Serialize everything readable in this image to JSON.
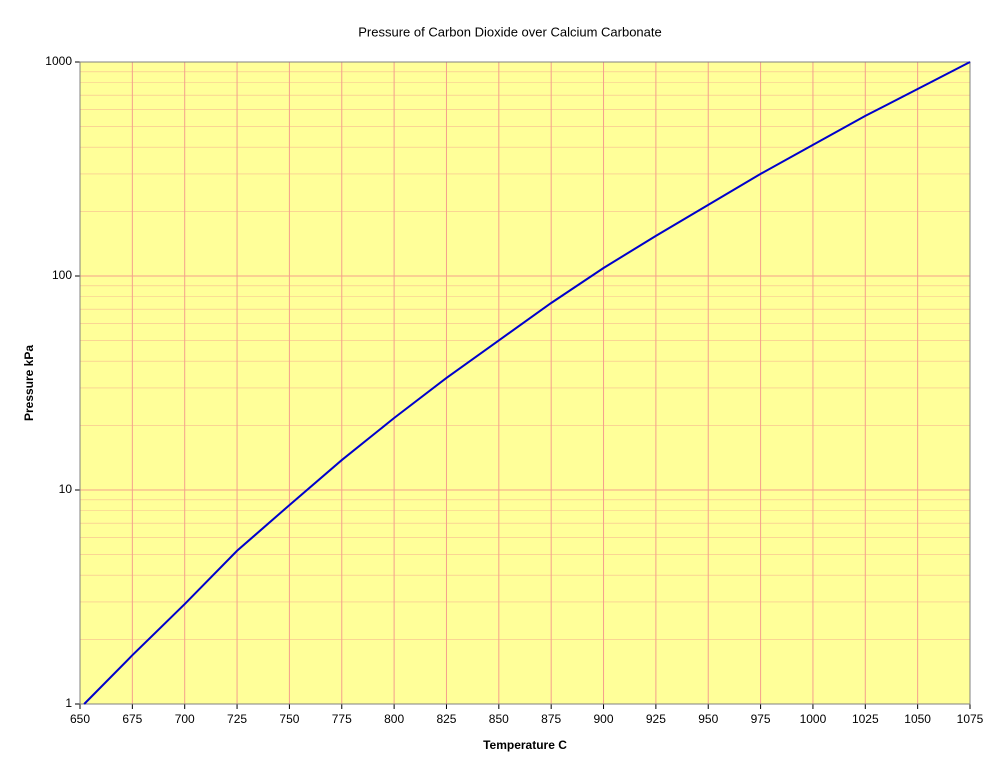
{
  "chart_data": {
    "type": "line",
    "title": "Pressure of Carbon Dioxide over Calcium Carbonate",
    "x_label": "Temperature C",
    "y_label": "Pressure kPa",
    "x": [
      652,
      675,
      700,
      725,
      750,
      775,
      800,
      825,
      850,
      875,
      900,
      925,
      950,
      975,
      1000,
      1025,
      1050,
      1075
    ],
    "series": [
      {
        "name": "Pressure",
        "color": "#0000cc",
        "values": [
          1,
          1.69,
          2.93,
          5.2,
          8.5,
          13.8,
          21.7,
          33.4,
          50,
          74.8,
          109,
          154,
          215,
          300,
          410,
          560,
          748,
          1000
        ]
      }
    ],
    "xlim": [
      650,
      1075
    ],
    "xticks": [
      650,
      675,
      700,
      725,
      750,
      775,
      800,
      825,
      850,
      875,
      900,
      925,
      950,
      975,
      1000,
      1025,
      1050,
      1075
    ],
    "ylim": [
      1,
      1000
    ],
    "yticks": [
      1,
      10,
      100,
      1000
    ],
    "y_scale": "log",
    "grid": true,
    "minor_grid": true,
    "background": "#ffff99",
    "grid_color": "#f4a08c"
  }
}
